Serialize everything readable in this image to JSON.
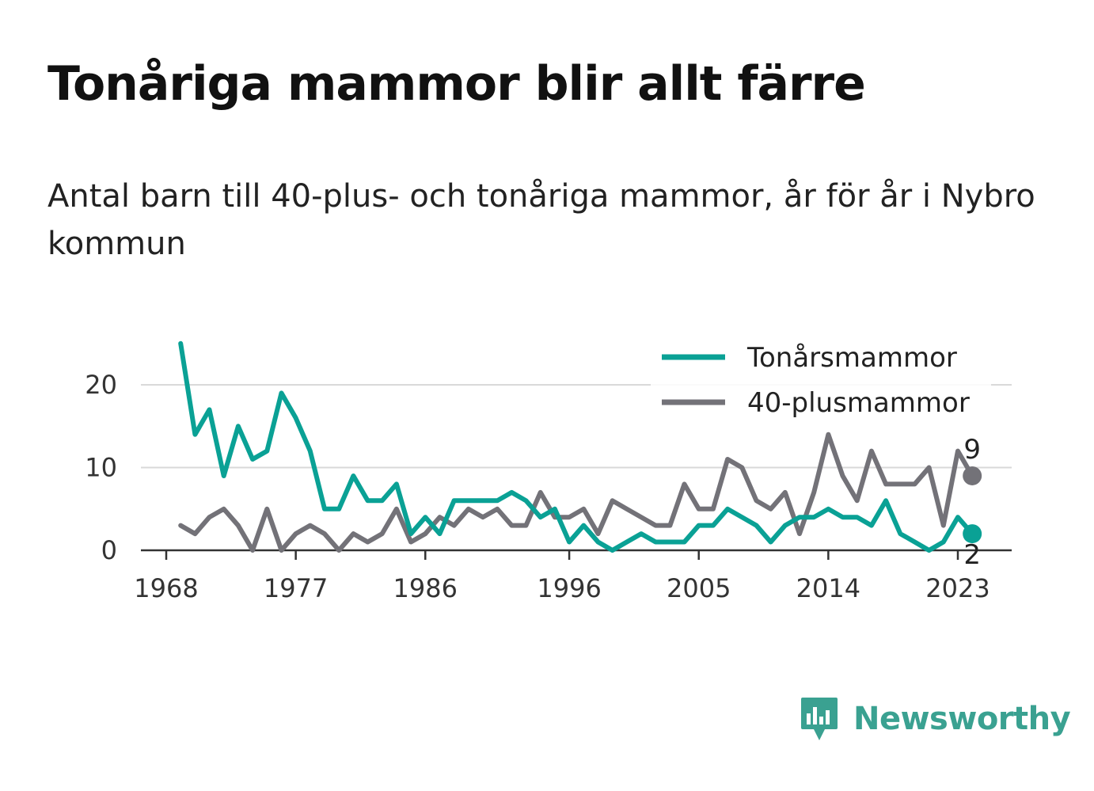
{
  "title": "Tonåriga mammor blir allt färre",
  "subtitle": "Antal barn till 40-plus- och tonåriga mammor, år för år i Nybro kommun",
  "brand": {
    "name": "Newsworthy",
    "icon": "newsworthy-logo-icon",
    "color": "#3aa191"
  },
  "chart_data": {
    "type": "line",
    "title": "Tonåriga mammor blir allt färre",
    "ylim": [
      0,
      25
    ],
    "y_ticks": [
      0,
      10,
      20
    ],
    "x_ticks": [
      1968,
      1977,
      1986,
      1996,
      2005,
      2014,
      2023
    ],
    "xlim": [
      1967,
      2026
    ],
    "grid": "horizontal",
    "legend_position": "top-right",
    "x": [
      1969,
      1970,
      1971,
      1972,
      1973,
      1974,
      1975,
      1976,
      1977,
      1978,
      1979,
      1980,
      1981,
      1982,
      1983,
      1984,
      1985,
      1986,
      1987,
      1988,
      1989,
      1990,
      1991,
      1992,
      1993,
      1994,
      1995,
      1996,
      1997,
      1998,
      1999,
      2000,
      2001,
      2002,
      2003,
      2004,
      2005,
      2006,
      2007,
      2008,
      2009,
      2010,
      2011,
      2012,
      2013,
      2014,
      2015,
      2016,
      2017,
      2018,
      2019,
      2020,
      2021,
      2022,
      2023,
      2024
    ],
    "series": [
      {
        "name": "Tonårsmammor",
        "color": "#0aa195",
        "end_label": "2",
        "values": [
          25,
          14,
          17,
          9,
          15,
          11,
          12,
          19,
          16,
          12,
          5,
          5,
          9,
          6,
          6,
          8,
          2,
          4,
          2,
          6,
          6,
          6,
          6,
          7,
          6,
          4,
          5,
          1,
          3,
          1,
          0,
          1,
          2,
          1,
          1,
          1,
          3,
          3,
          5,
          4,
          3,
          1,
          3,
          4,
          4,
          5,
          4,
          4,
          3,
          6,
          2,
          1,
          0,
          1,
          4,
          2
        ]
      },
      {
        "name": "40-plusmammor",
        "color": "#737278",
        "end_label": "9",
        "values": [
          3,
          2,
          4,
          5,
          3,
          0,
          5,
          0,
          2,
          3,
          2,
          0,
          2,
          1,
          2,
          5,
          1,
          2,
          4,
          3,
          5,
          4,
          5,
          3,
          3,
          7,
          4,
          4,
          5,
          2,
          6,
          5,
          4,
          3,
          3,
          8,
          5,
          5,
          11,
          10,
          6,
          5,
          7,
          2,
          7,
          14,
          9,
          6,
          12,
          8,
          8,
          8,
          10,
          3,
          12,
          9
        ]
      }
    ]
  }
}
